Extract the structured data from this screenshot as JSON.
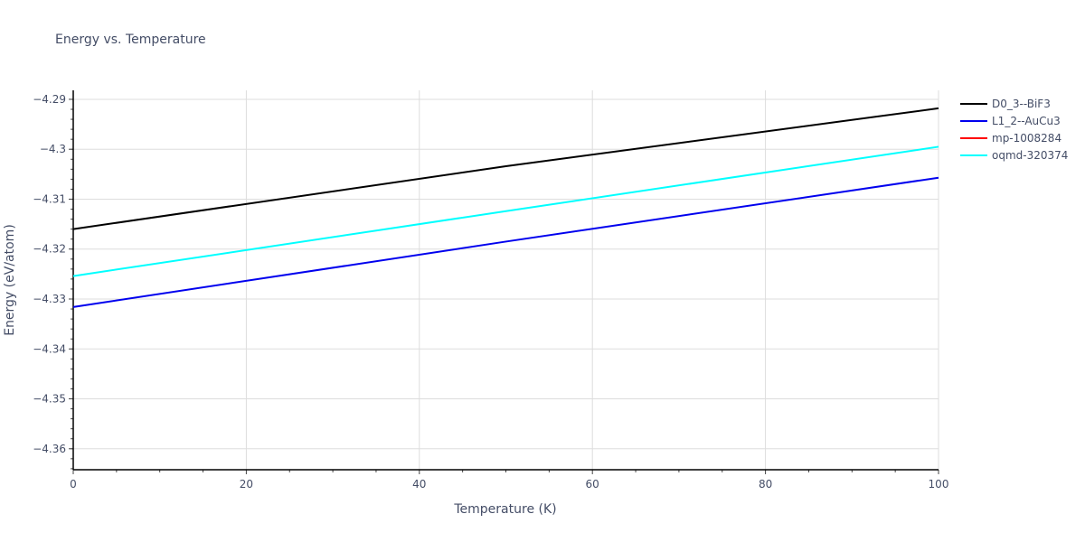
{
  "chart_data": {
    "type": "line",
    "title": "Energy vs. Temperature",
    "xlabel": "Temperature (K)",
    "ylabel": "Energy (eV/atom)",
    "xlim": [
      0,
      100
    ],
    "ylim": [
      -4.3642,
      -4.2882
    ],
    "grid": true,
    "legend_position": "top-right-outside",
    "x_ticks": [
      0,
      20,
      40,
      60,
      80,
      100
    ],
    "y_ticks": [
      -4.29,
      -4.3,
      -4.31,
      -4.32,
      -4.33,
      -4.34,
      -4.35,
      -4.36
    ],
    "y_tick_labels": [
      "−4.29",
      "−4.3",
      "−4.31",
      "−4.32",
      "−4.33",
      "−4.34",
      "−4.35",
      "−4.36"
    ],
    "x_tick_labels": [
      "0",
      "20",
      "40",
      "60",
      "80",
      "100"
    ],
    "series": [
      {
        "name": "D0_3--BiF3",
        "color": "#000000",
        "x": [
          0,
          50,
          100
        ],
        "values": [
          -4.316,
          -4.3034,
          -4.2918
        ]
      },
      {
        "name": "L1_2--AuCu3",
        "color": "#0000ee",
        "x": [
          0,
          50,
          100
        ],
        "values": [
          -4.3316,
          -4.3185,
          -4.3057
        ]
      },
      {
        "name": "mp-1008284",
        "color": "#ff0000",
        "x": [],
        "values": []
      },
      {
        "name": "oqmd-320374",
        "color": "#00ffff",
        "x": [
          0,
          50,
          100
        ],
        "values": [
          -4.3254,
          -4.3124,
          -4.2995
        ]
      }
    ]
  }
}
